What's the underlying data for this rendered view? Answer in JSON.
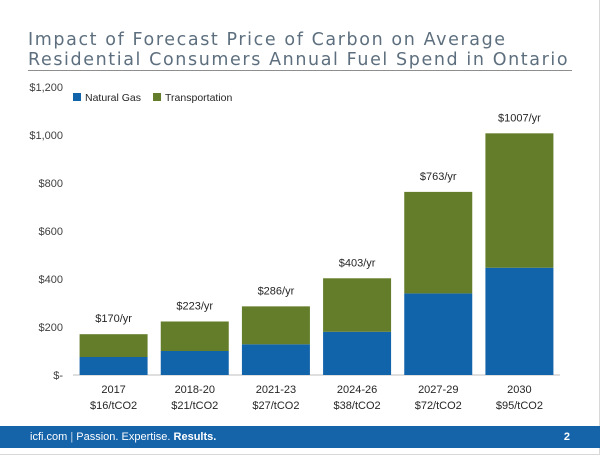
{
  "title_lines": [
    "Impact of Forecast Price of Carbon on Average",
    "Residential Consumers Annual Fuel Spend in Ontario"
  ],
  "footer": {
    "site": "icfi.com",
    "separator": "|",
    "tagline_plain": "Passion.",
    "tagline_mid": "Expertise.",
    "tagline_bold": "Results.",
    "page_number": "2"
  },
  "colors": {
    "natural_gas": "#1264aa",
    "transportation": "#647d2a",
    "accent": "#1563a9"
  },
  "chart_data": {
    "type": "bar",
    "stacked": true,
    "categories": [
      "2017",
      "2018-20",
      "2021-23",
      "2024-26",
      "2027-29",
      "2030"
    ],
    "category_sublabels": [
      "$16/tCO2",
      "$21/tCO2",
      "$27/tCO2",
      "$38/tCO2",
      "$72/tCO2",
      "$95/tCO2"
    ],
    "series": [
      {
        "name": "Natural Gas",
        "values": [
          75,
          100,
          128,
          180,
          340,
          447
        ]
      },
      {
        "name": "Transportation",
        "values": [
          95,
          123,
          158,
          223,
          423,
          560
        ]
      }
    ],
    "total_labels": [
      "$170/yr",
      "$223/yr",
      "$286/yr",
      "$403/yr",
      "$763/yr",
      "$1007/yr"
    ],
    "ylim": [
      0,
      1200
    ],
    "yticks": [
      0,
      200,
      400,
      600,
      800,
      1000,
      1200
    ],
    "ytick_labels": [
      "$-",
      "$200",
      "$400",
      "$600",
      "$800",
      "$1,000",
      "$1,200"
    ],
    "title": "",
    "xlabel": "",
    "ylabel": "",
    "grid": false,
    "legend_position": "top-left"
  }
}
